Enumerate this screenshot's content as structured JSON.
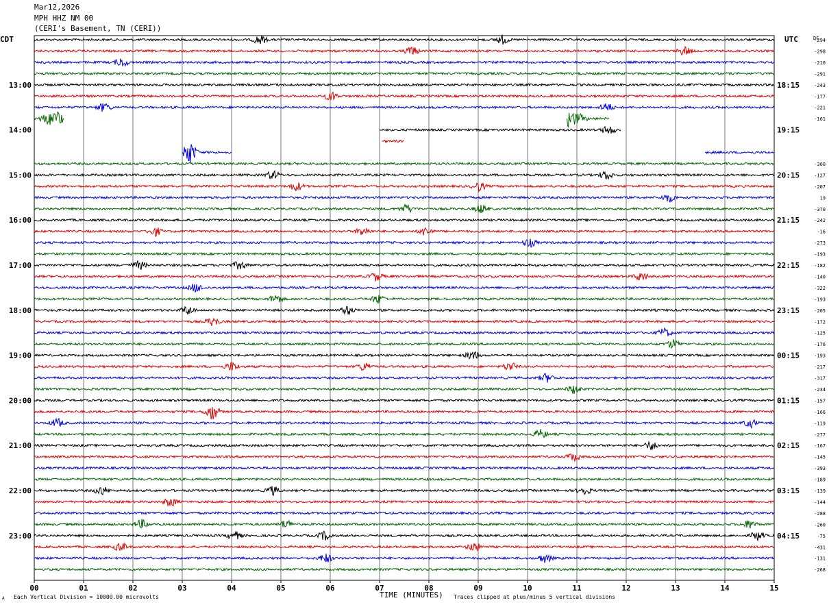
{
  "header": {
    "date": "Mar12,2026",
    "station": "MPH HHZ NM 00",
    "location": "(CERI's Basement, TN (CERI))"
  },
  "footer": {
    "scale_note": "Each Vertical Division = 10000.00 microvolts",
    "clip_note": "Traces clipped at plus/minus 5 vertical divisions",
    "corner_mark": "A"
  },
  "chart_data": {
    "type": "line",
    "title": "MPH HHZ NM 00",
    "xlabel": "TIME (MINUTES)",
    "left_label": "CDT",
    "right_label": "UTC",
    "dc_label": "DC",
    "xlim": [
      0,
      15
    ],
    "x_ticks": [
      "00",
      "01",
      "02",
      "03",
      "04",
      "05",
      "06",
      "07",
      "08",
      "09",
      "10",
      "11",
      "12",
      "13",
      "14",
      "15"
    ],
    "grid": "vertical",
    "series_colors": [
      "#000000",
      "#e00000",
      "#0000e0",
      "#006400"
    ],
    "row_count": 48,
    "left_hour_labels": [
      {
        "row": 4,
        "label": "13:00"
      },
      {
        "row": 8,
        "label": "14:00"
      },
      {
        "row": 12,
        "label": "15:00"
      },
      {
        "row": 16,
        "label": "16:00"
      },
      {
        "row": 20,
        "label": "17:00"
      },
      {
        "row": 24,
        "label": "18:00"
      },
      {
        "row": 28,
        "label": "19:00"
      },
      {
        "row": 32,
        "label": "20:00"
      },
      {
        "row": 36,
        "label": "21:00"
      },
      {
        "row": 40,
        "label": "22:00"
      },
      {
        "row": 44,
        "label": "23:00"
      }
    ],
    "right_hour_labels": [
      {
        "row": 4,
        "label": "18:15"
      },
      {
        "row": 8,
        "label": "19:15"
      },
      {
        "row": 12,
        "label": "20:15"
      },
      {
        "row": 16,
        "label": "21:15"
      },
      {
        "row": 20,
        "label": "22:15"
      },
      {
        "row": 24,
        "label": "23:15"
      },
      {
        "row": 28,
        "label": "00:15"
      },
      {
        "row": 32,
        "label": "01:15"
      },
      {
        "row": 36,
        "label": "02:15"
      },
      {
        "row": 40,
        "label": "03:15"
      },
      {
        "row": 44,
        "label": "04:15"
      }
    ],
    "dc_offsets": [
      {
        "row": 0,
        "value": "-294"
      },
      {
        "row": 1,
        "value": "-298"
      },
      {
        "row": 2,
        "value": "-210"
      },
      {
        "row": 3,
        "value": "-291"
      },
      {
        "row": 4,
        "value": "-243"
      },
      {
        "row": 5,
        "value": "-177"
      },
      {
        "row": 6,
        "value": "-221"
      },
      {
        "row": 7,
        "value": "-161"
      },
      {
        "row": 11,
        "value": "-360"
      },
      {
        "row": 12,
        "value": "-127"
      },
      {
        "row": 13,
        "value": "-207"
      },
      {
        "row": 14,
        "value": "19"
      },
      {
        "row": 15,
        "value": "-370"
      },
      {
        "row": 16,
        "value": "-242"
      },
      {
        "row": 17,
        "value": "-16"
      },
      {
        "row": 18,
        "value": "-273"
      },
      {
        "row": 19,
        "value": "-193"
      },
      {
        "row": 20,
        "value": "-182"
      },
      {
        "row": 21,
        "value": "-140"
      },
      {
        "row": 22,
        "value": "-322"
      },
      {
        "row": 23,
        "value": "-193"
      },
      {
        "row": 24,
        "value": "-205"
      },
      {
        "row": 25,
        "value": "-172"
      },
      {
        "row": 26,
        "value": "-125"
      },
      {
        "row": 27,
        "value": "-176"
      },
      {
        "row": 28,
        "value": "-193"
      },
      {
        "row": 29,
        "value": "-217"
      },
      {
        "row": 30,
        "value": "-317"
      },
      {
        "row": 31,
        "value": "-234"
      },
      {
        "row": 32,
        "value": "-157"
      },
      {
        "row": 33,
        "value": "-166"
      },
      {
        "row": 34,
        "value": "-119"
      },
      {
        "row": 35,
        "value": "-277"
      },
      {
        "row": 36,
        "value": "-167"
      },
      {
        "row": 37,
        "value": "-145"
      },
      {
        "row": 38,
        "value": "-393"
      },
      {
        "row": 39,
        "value": "-189"
      },
      {
        "row": 40,
        "value": "-139"
      },
      {
        "row": 41,
        "value": "-144"
      },
      {
        "row": 42,
        "value": "-288"
      },
      {
        "row": 43,
        "value": "-260"
      },
      {
        "row": 44,
        "value": "-75"
      },
      {
        "row": 45,
        "value": "-431"
      },
      {
        "row": 46,
        "value": "-131"
      },
      {
        "row": 47,
        "value": "-268"
      }
    ],
    "trace_segments": [
      {
        "row": 7,
        "x_start": 0.0,
        "x_end": 0.6
      },
      {
        "row": 7,
        "x_start": 10.8,
        "x_end": 11.65
      },
      {
        "row": 8,
        "x_start": 7.0,
        "x_end": 11.9
      },
      {
        "row": 9,
        "x_start": 7.05,
        "x_end": 7.5
      },
      {
        "row": 10,
        "x_start": 3.0,
        "x_end": 4.0
      },
      {
        "row": 10,
        "x_start": 13.6,
        "x_end": 15.0
      }
    ],
    "full_rows": [
      0,
      1,
      2,
      3,
      4,
      5,
      6,
      11,
      12,
      13,
      14,
      15,
      16,
      17,
      18,
      19,
      20,
      21,
      22,
      23,
      24,
      25,
      26,
      27,
      28,
      29,
      30,
      31,
      32,
      33,
      34,
      35,
      36,
      37,
      38,
      39,
      40,
      41,
      42,
      43,
      44,
      45,
      46,
      47
    ]
  }
}
